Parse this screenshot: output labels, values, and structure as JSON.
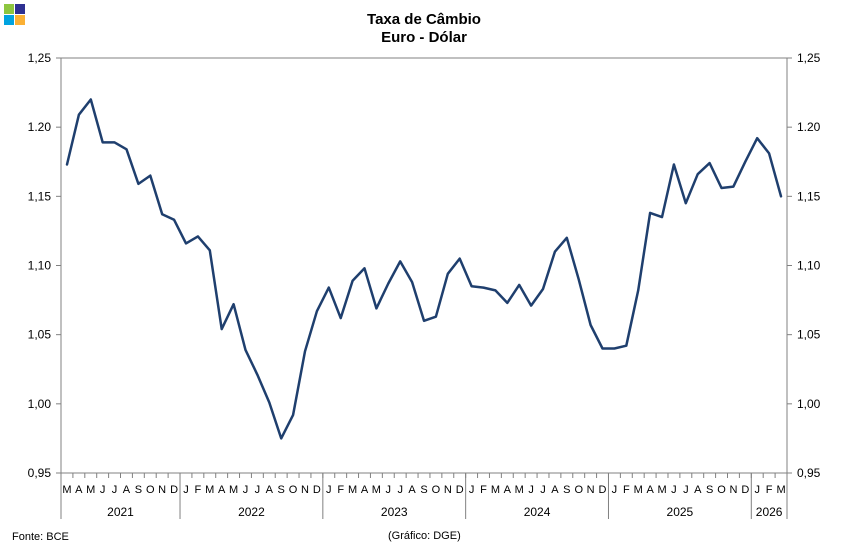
{
  "title_line1": "Taxa de Câmbio",
  "title_line2": "Euro - Dólar",
  "footer_source": "Fonte: BCE",
  "footer_credit": "(Gráfico: DGE)",
  "logo_colors": [
    "#8dc63f",
    "#2e3192",
    "#00a3e0",
    "#fbb034"
  ],
  "line_color": "#1f3f6e",
  "chart_data": {
    "type": "line",
    "title": "Taxa de Câmbio Euro - Dólar",
    "ylim": [
      0.95,
      1.25
    ],
    "yticks": [
      "1,25",
      "1.20",
      "1,15",
      "1,10",
      "1,05",
      "1,00",
      "0,95"
    ],
    "ytick_values": [
      1.25,
      1.2,
      1.15,
      1.1,
      1.05,
      1.0,
      0.95
    ],
    "month_labels": [
      "M",
      "A",
      "M",
      "J",
      "J",
      "A",
      "S",
      "O",
      "N",
      "D",
      "J",
      "F",
      "M",
      "A",
      "M",
      "J",
      "J",
      "A",
      "S",
      "O",
      "N",
      "D",
      "J",
      "F",
      "M",
      "A",
      "M",
      "J",
      "J",
      "A",
      "S",
      "O",
      "N",
      "D",
      "J",
      "F",
      "M",
      "A",
      "M",
      "J",
      "J",
      "A",
      "S",
      "O",
      "N",
      "D",
      "J",
      "F",
      "M",
      "A",
      "M",
      "J",
      "J",
      "A",
      "S",
      "O",
      "N",
      "D",
      "J",
      "F",
      "M"
    ],
    "years": [
      {
        "label": "2021",
        "months": 10
      },
      {
        "label": "2022",
        "months": 12
      },
      {
        "label": "2023",
        "months": 12
      },
      {
        "label": "2024",
        "months": 12
      },
      {
        "label": "2025",
        "months": 12
      },
      {
        "label": "2026",
        "months": 3
      }
    ],
    "grid": false,
    "legend": "none",
    "series": [
      {
        "values": [
          1.173,
          1.209,
          1.22,
          1.189,
          1.189,
          1.184,
          1.159,
          1.165,
          1.137,
          1.133,
          1.116,
          1.121,
          1.111,
          1.054,
          1.072,
          1.039,
          1.021,
          1.001,
          0.975,
          0.992,
          1.038,
          1.067,
          1.084,
          1.062,
          1.089,
          1.098,
          1.069,
          1.087,
          1.103,
          1.088,
          1.06,
          1.063,
          1.094,
          1.105,
          1.085,
          1.084,
          1.082,
          1.073,
          1.086,
          1.071,
          1.083,
          1.11,
          1.12,
          1.09,
          1.057,
          1.04,
          1.04,
          1.042,
          1.082,
          1.138,
          1.135,
          1.173,
          1.145,
          1.166,
          1.174,
          1.156,
          1.157,
          1.175,
          1.192,
          1.181,
          1.15
        ]
      }
    ]
  }
}
